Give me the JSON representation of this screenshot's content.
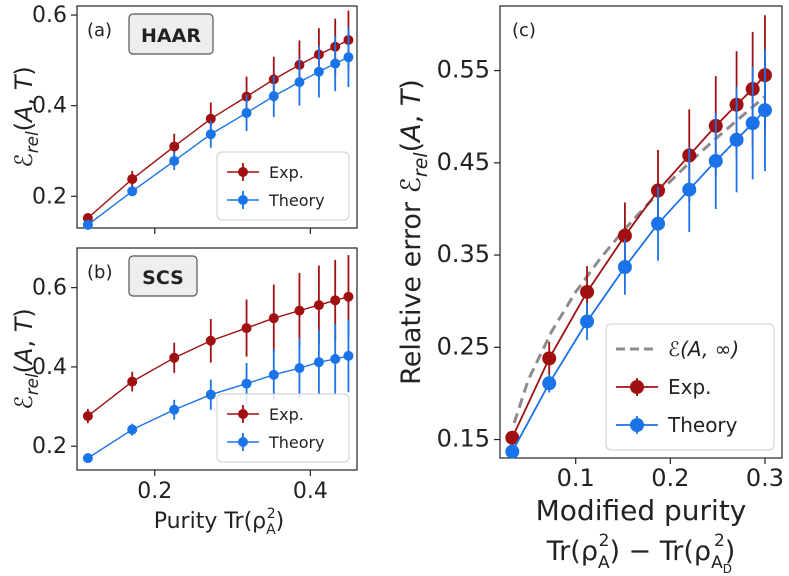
{
  "colors": {
    "exp": "#a01010",
    "theory": "#1a73e8",
    "limit": "#8c8c8c",
    "axis": "#222222"
  },
  "chart_data": [
    {
      "id": "a",
      "type": "line",
      "panel_label": "(a)",
      "badge": "HAAR",
      "ylabel": "ℰrel(A, T)",
      "xlabel": "",
      "xlim": [
        0.1,
        0.46
      ],
      "ylim": [
        0.13,
        0.62
      ],
      "xticks": [
        0.2,
        0.4
      ],
      "yticks": [
        0.2,
        0.4,
        0.6
      ],
      "ytick_labels": [
        "0.2",
        "0.4",
        "0.6"
      ],
      "xtick_labels": [],
      "legend": "bottom-right",
      "series": [
        {
          "name": "Exp.",
          "x": [
            0.114,
            0.171,
            0.225,
            0.272,
            0.318,
            0.353,
            0.386,
            0.411,
            0.432,
            0.449
          ],
          "y": [
            0.152,
            0.238,
            0.31,
            0.371,
            0.42,
            0.458,
            0.49,
            0.513,
            0.53,
            0.545
          ],
          "err": [
            0.006,
            0.018,
            0.028,
            0.036,
            0.044,
            0.05,
            0.054,
            0.058,
            0.062,
            0.065
          ]
        },
        {
          "name": "Theory",
          "x": [
            0.114,
            0.171,
            0.225,
            0.272,
            0.318,
            0.353,
            0.386,
            0.411,
            0.432,
            0.449
          ],
          "y": [
            0.137,
            0.211,
            0.278,
            0.337,
            0.384,
            0.421,
            0.452,
            0.475,
            0.493,
            0.507
          ],
          "err": [
            0.004,
            0.01,
            0.02,
            0.03,
            0.04,
            0.046,
            0.052,
            0.057,
            0.061,
            0.066
          ]
        }
      ]
    },
    {
      "id": "b",
      "type": "line",
      "panel_label": "(b)",
      "badge": "SCS",
      "ylabel": "ℰrel(A, T)",
      "xlabel": "Purity Tr(ρA²)",
      "xlim": [
        0.1,
        0.46
      ],
      "ylim": [
        0.14,
        0.7
      ],
      "xticks": [
        0.2,
        0.4
      ],
      "yticks": [
        0.2,
        0.4,
        0.6
      ],
      "ytick_labels": [
        "0.2",
        "0.4",
        "0.6"
      ],
      "xtick_labels": [
        "0.2",
        "0.4"
      ],
      "legend": "bottom-right",
      "series": [
        {
          "name": "Exp.",
          "x": [
            0.114,
            0.171,
            0.225,
            0.272,
            0.318,
            0.353,
            0.386,
            0.411,
            0.432,
            0.449
          ],
          "y": [
            0.276,
            0.363,
            0.423,
            0.466,
            0.498,
            0.523,
            0.542,
            0.556,
            0.568,
            0.577
          ],
          "err": [
            0.018,
            0.025,
            0.038,
            0.055,
            0.072,
            0.085,
            0.095,
            0.1,
            0.102,
            0.105
          ]
        },
        {
          "name": "Theory",
          "x": [
            0.114,
            0.171,
            0.225,
            0.272,
            0.318,
            0.353,
            0.386,
            0.411,
            0.432,
            0.449
          ],
          "y": [
            0.17,
            0.242,
            0.292,
            0.33,
            0.358,
            0.38,
            0.397,
            0.412,
            0.42,
            0.428
          ],
          "err": [
            0.004,
            0.015,
            0.025,
            0.038,
            0.052,
            0.065,
            0.075,
            0.082,
            0.088,
            0.092
          ]
        }
      ]
    },
    {
      "id": "c",
      "type": "line",
      "panel_label": "(c)",
      "badge": "",
      "ylabel": "Relative error ℰrel(A, T)",
      "xlabel_line1": "Modified purity",
      "xlabel_line2": "Tr(ρA²) − Tr(ρAD²)",
      "xlim": [
        0.02,
        0.318
      ],
      "ylim": [
        0.13,
        0.62
      ],
      "xticks": [
        0.1,
        0.2,
        0.3
      ],
      "yticks": [
        0.15,
        0.25,
        0.35,
        0.45,
        0.55
      ],
      "ytick_labels": [
        "0.15",
        "0.25",
        "0.35",
        "0.45",
        "0.55"
      ],
      "xtick_labels": [
        "0.1",
        "0.2",
        "0.3"
      ],
      "legend": "bottom-right",
      "limit_curve": {
        "name": "ℰ(A, ∞)",
        "x": [
          0.035,
          0.05,
          0.075,
          0.1,
          0.125,
          0.15,
          0.175,
          0.2,
          0.225,
          0.25,
          0.275,
          0.3
        ],
        "y": [
          0.168,
          0.215,
          0.268,
          0.31,
          0.345,
          0.376,
          0.404,
          0.43,
          0.455,
          0.478,
          0.5,
          0.522
        ]
      },
      "series": [
        {
          "name": "Exp.",
          "x": [
            0.033,
            0.072,
            0.112,
            0.152,
            0.187,
            0.22,
            0.248,
            0.27,
            0.287,
            0.3
          ],
          "y": [
            0.152,
            0.238,
            0.31,
            0.371,
            0.42,
            0.458,
            0.49,
            0.513,
            0.53,
            0.545
          ],
          "err": [
            0.006,
            0.018,
            0.028,
            0.036,
            0.044,
            0.05,
            0.054,
            0.058,
            0.062,
            0.065
          ]
        },
        {
          "name": "Theory",
          "x": [
            0.033,
            0.072,
            0.112,
            0.152,
            0.187,
            0.22,
            0.248,
            0.27,
            0.287,
            0.3
          ],
          "y": [
            0.137,
            0.211,
            0.278,
            0.337,
            0.384,
            0.421,
            0.452,
            0.475,
            0.493,
            0.507
          ],
          "err": [
            0.004,
            0.01,
            0.02,
            0.03,
            0.04,
            0.046,
            0.052,
            0.057,
            0.061,
            0.066
          ]
        }
      ]
    }
  ]
}
